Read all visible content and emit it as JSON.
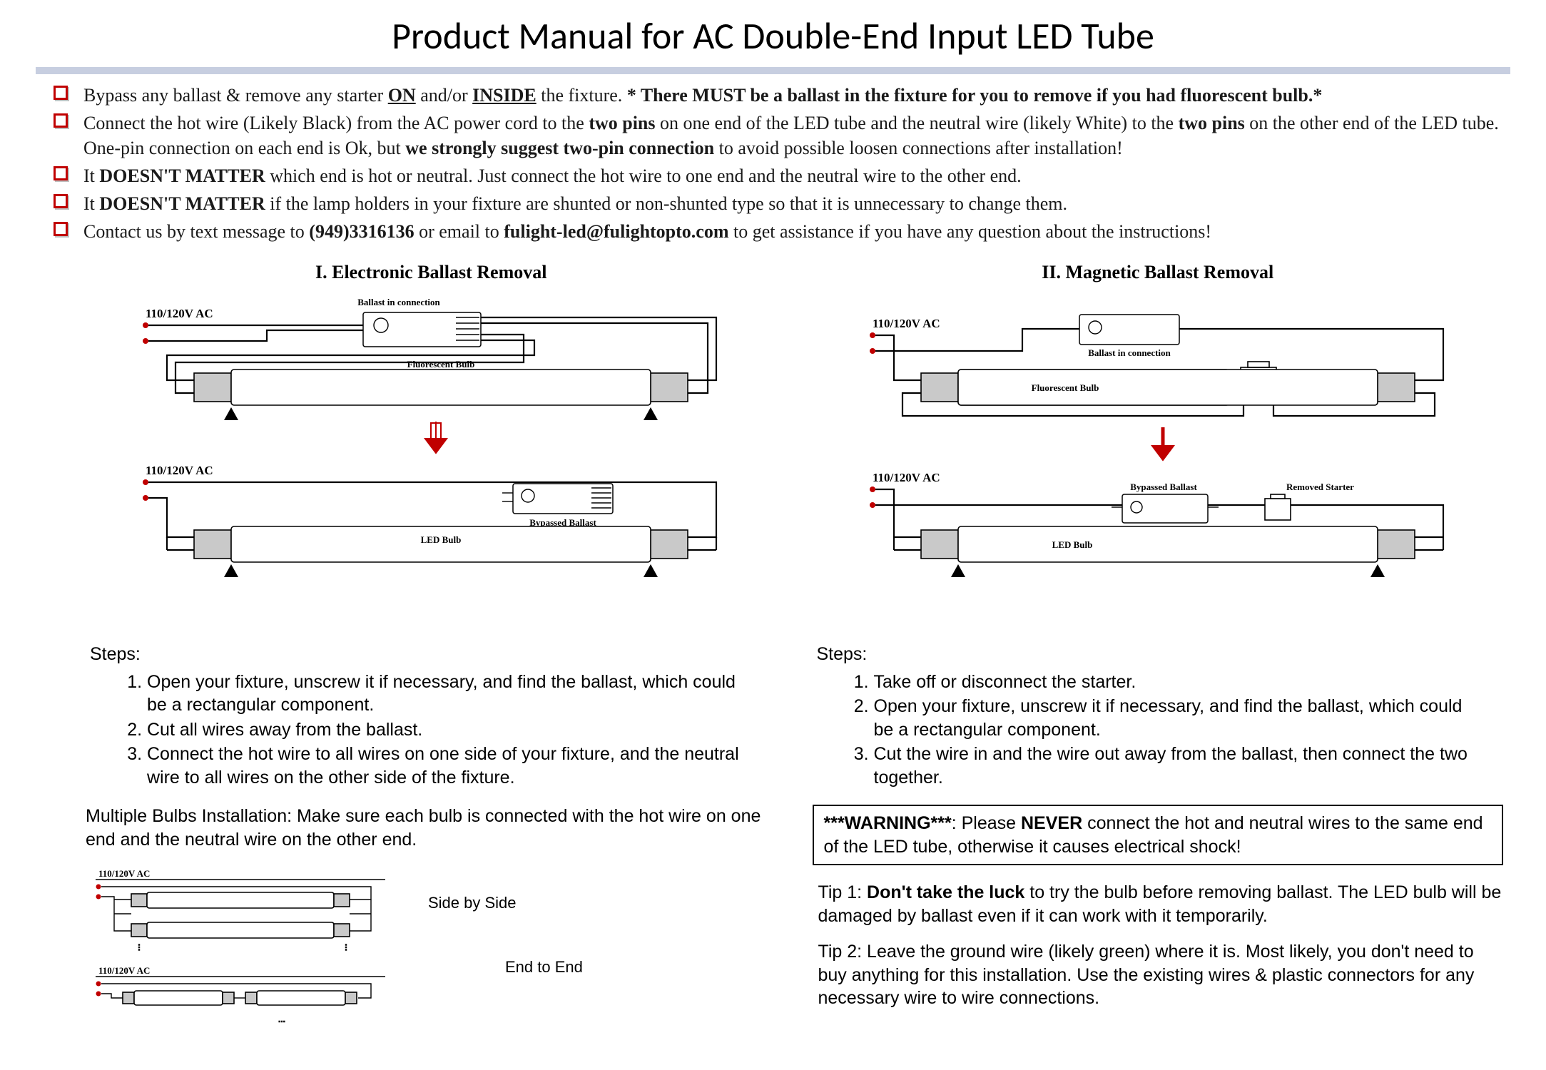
{
  "title": "Product Manual for AC Double-End Input LED Tube",
  "bullets": [
    "Bypass any ballast & remove any starter <span class=\"b u\">ON</span> and/or <span class=\"b u\">INSIDE</span> the fixture. <span class=\"b\">* There MUST be a ballast in the fixture for you to remove if you had fluorescent bulb.*</span>",
    "Connect the hot wire (Likely Black) from the AC power cord to the <span class=\"b\">two pins</span> on one end of the LED tube and the neutral wire (likely White) to the <span class=\"b\">two pins</span> on the other end of the LED tube. One-pin connection on each end is Ok, but <span class=\"b\">we strongly suggest two-pin connection</span> to avoid possible loosen connections after installation!",
    "It <span class=\"b\">DOESN'T MATTER</span> which end is hot or neutral. Just connect the hot wire to one end and the neutral wire to the other end.",
    "It <span class=\"b\">DOESN'T MATTER</span> if the lamp holders in your fixture are shunted or non-shunted type so that it is unnecessary to change them.",
    "Contact us by text message to <span class=\"b\">(949)3316136</span> or email to <span class=\"b\">fulight-led@fulightopto.com</span> to get assistance if you have any question about the instructions!"
  ],
  "section1_title": "I.  Electronic Ballast Removal",
  "section2_title": "II.  Magnetic Ballast Removal",
  "steps_label": "Steps:",
  "steps1": [
    "Open your fixture, unscrew it if necessary, and find the ballast, which could be a rectangular component.",
    "Cut all wires away from the ballast.",
    "Connect the hot wire to all wires on one side of your fixture, and the neutral wire to all wires on the other side of the fixture."
  ],
  "steps2": [
    "Take off or disconnect the starter.",
    "Open your fixture, unscrew it if necessary, and find the ballast, which could be a rectangular component.",
    "Cut the wire in and the wire out away from the ballast, then connect the two together."
  ],
  "multi_label": "Multiple Bulbs Installation: Make sure each bulb is connected with the hot wire on one end and the neutral wire on the other end.",
  "warning": "<span class=\"b\">***WARNING***</span>: Please <span class=\"b\">NEVER</span> connect the hot and neutral wires to the same end of the LED tube, otherwise it causes electrical shock!",
  "tip1": "Tip 1: <span class=\"b\">Don't take the luck</span> to try the bulb before removing ballast. The LED bulb will be damaged by ballast even if it can work with it temporarily.",
  "tip2": "Tip 2: Leave the ground wire (likely green) where it is. Most likely, you don't need to buy anything for this installation. Use the existing wires & plastic connectors for any necessary wire to wire connections.",
  "diag_labels": {
    "ac": "110/120V AC",
    "ballast_conn": "Ballast in connection",
    "fluorescent": "Fluorescent Bulb",
    "bypassed": "Bypassed Ballast",
    "led": "LED Bulb",
    "starter": "Starter",
    "removed_starter": "Removed Starter",
    "side_by_side": "Side by Side",
    "end_to_end": "End to End"
  },
  "colors": {
    "bullet_box": "#c00000",
    "rule_bg": "#c7cee0",
    "terminal": "#c00000",
    "arrow": "#c00000"
  },
  "diagram_sizes": {
    "main_w": 820,
    "main_h": 480,
    "mini_w": 720,
    "mini_h": 220
  }
}
